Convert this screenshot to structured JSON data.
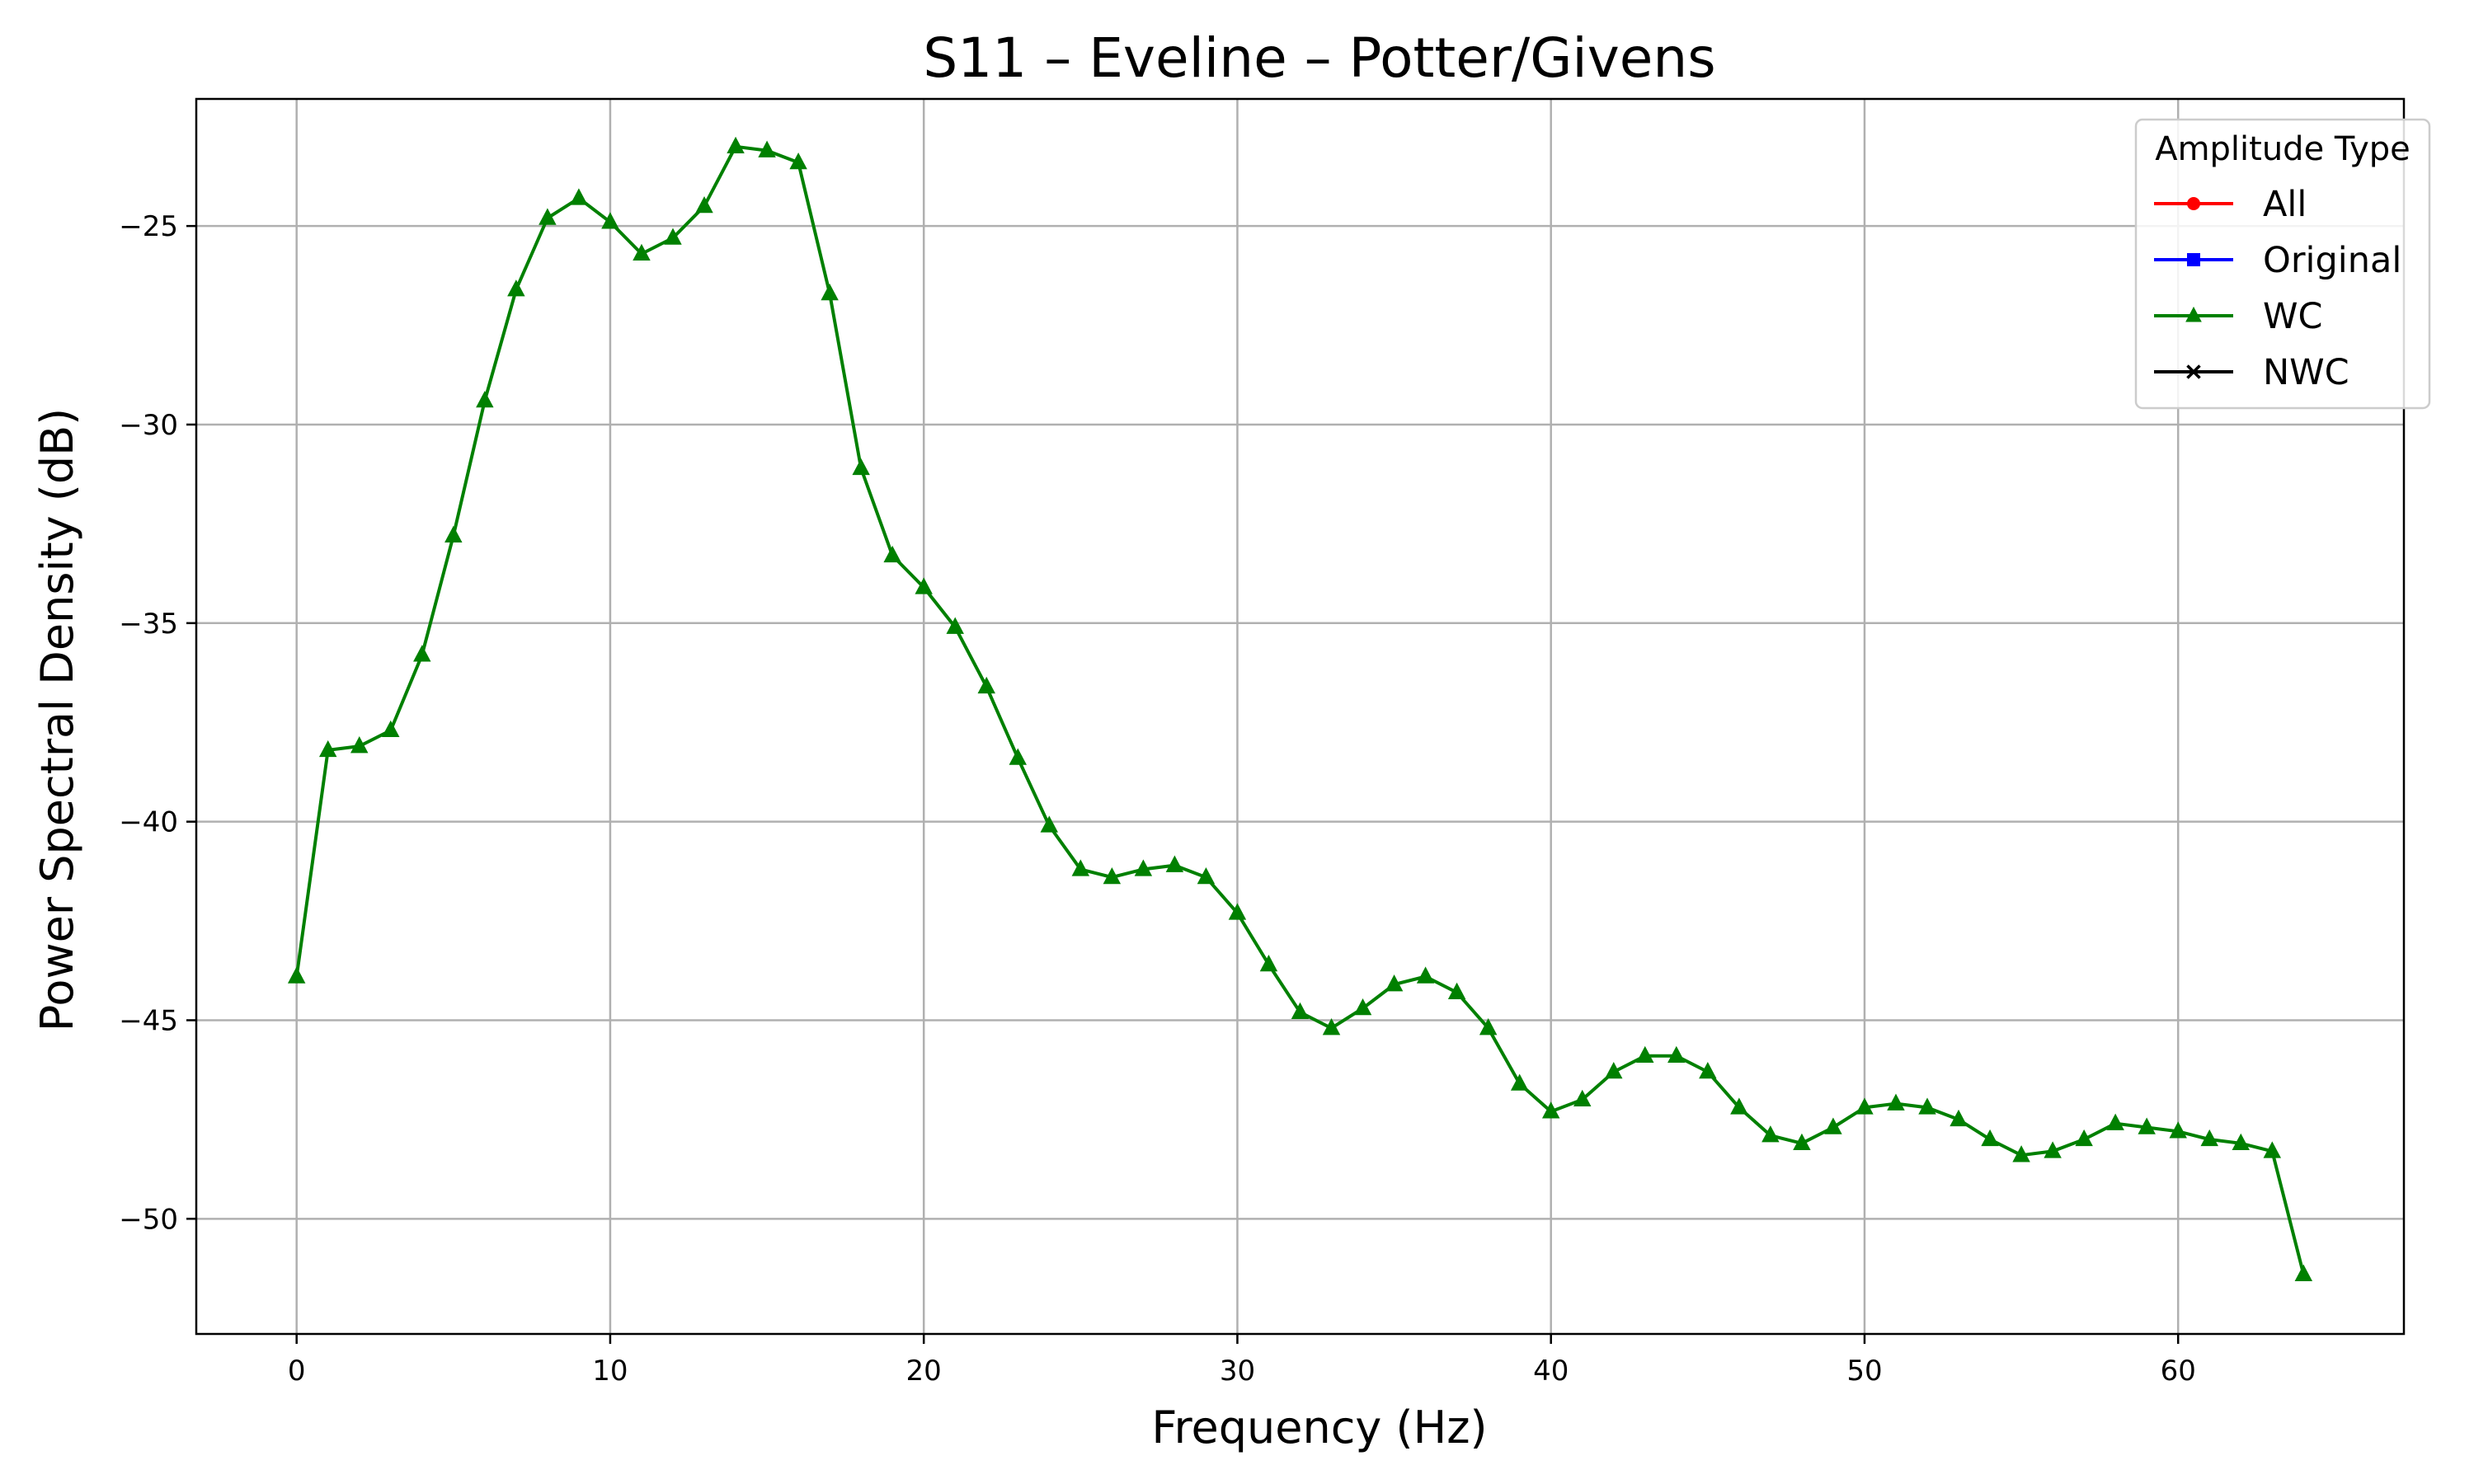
{
  "chart_data": {
    "type": "line",
    "title": "S11 – Eveline – Potter/Givens",
    "xlabel": "Frequency (Hz)",
    "ylabel": "Power Spectral Density (dB)",
    "xlim": [
      -3.2,
      67.2
    ],
    "ylim": [
      -52.9,
      -21.8
    ],
    "xticks": [
      0,
      10,
      20,
      30,
      40,
      50,
      60
    ],
    "yticks": [
      -25,
      -30,
      -35,
      -40,
      -45,
      -50
    ],
    "xtick_labels": [
      "0",
      "10",
      "20",
      "30",
      "40",
      "50",
      "60"
    ],
    "ytick_labels": [
      "−25",
      "−30",
      "−35",
      "−40",
      "−45",
      "−50"
    ],
    "grid": true,
    "legend": {
      "title": "Amplitude Type",
      "placement": "upper right",
      "entries": [
        {
          "label": "All",
          "color": "#ff0000",
          "marker": "circle"
        },
        {
          "label": "Original",
          "color": "#0000ff",
          "marker": "square"
        },
        {
          "label": "WC",
          "color": "#008000",
          "marker": "triangle"
        },
        {
          "label": "NWC",
          "color": "#000000",
          "marker": "x"
        }
      ]
    },
    "series": [
      {
        "name": "WC",
        "color": "#008000",
        "marker": "triangle",
        "x": [
          0,
          1,
          2,
          3,
          4,
          5,
          6,
          7,
          8,
          9,
          10,
          11,
          12,
          13,
          14,
          15,
          16,
          17,
          18,
          19,
          20,
          21,
          22,
          23,
          24,
          25,
          26,
          27,
          28,
          29,
          30,
          31,
          32,
          33,
          34,
          35,
          36,
          37,
          38,
          39,
          40,
          41,
          42,
          43,
          44,
          45,
          46,
          47,
          48,
          49,
          50,
          51,
          52,
          53,
          54,
          55,
          56,
          57,
          58,
          59,
          60,
          61,
          62,
          63,
          64
        ],
        "y": [
          -43.9,
          -38.2,
          -38.1,
          -37.7,
          -35.8,
          -32.8,
          -29.4,
          -26.6,
          -24.8,
          -24.3,
          -24.9,
          -25.7,
          -25.3,
          -24.5,
          -23.0,
          -23.1,
          -23.4,
          -26.7,
          -31.1,
          -33.3,
          -34.1,
          -35.1,
          -36.6,
          -38.4,
          -40.1,
          -41.2,
          -41.4,
          -41.2,
          -41.1,
          -41.4,
          -42.3,
          -43.6,
          -44.8,
          -45.2,
          -44.7,
          -44.1,
          -43.9,
          -44.3,
          -45.2,
          -46.6,
          -47.3,
          -47.0,
          -46.3,
          -45.9,
          -45.9,
          -46.3,
          -47.2,
          -47.9,
          -48.1,
          -47.7,
          -47.2,
          -47.1,
          -47.2,
          -47.5,
          -48.0,
          -48.4,
          -48.3,
          -48.0,
          -47.6,
          -47.7,
          -47.8,
          -48.0,
          -48.1,
          -48.3,
          -51.4
        ]
      }
    ]
  }
}
